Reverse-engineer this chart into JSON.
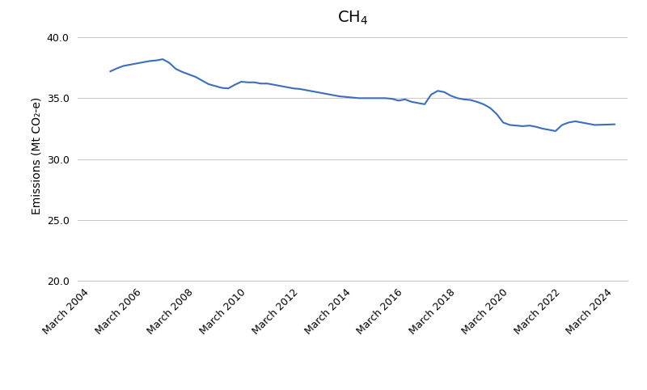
{
  "title": "CH$_4$",
  "ylabel": "Emissions (Mt CO₂-e)",
  "line_color": "#3c6dbf",
  "background_color": "#ffffff",
  "grid_color": "#c8c8c8",
  "ylim": [
    20.0,
    40.5
  ],
  "yticks": [
    20.0,
    25.0,
    30.0,
    35.0,
    40.0
  ],
  "x_tick_labels": [
    "March 2004",
    "March 2006",
    "March 2008",
    "March 2010",
    "March 2012",
    "March 2014",
    "March 2016",
    "March 2018",
    "March 2020",
    "March 2022",
    "March 2024"
  ],
  "x_tick_years": [
    2004,
    2006,
    2008,
    2010,
    2012,
    2014,
    2016,
    2018,
    2020,
    2022,
    2024
  ],
  "xlim": [
    2003.5,
    2024.5
  ],
  "data": {
    "years": [
      2004.75,
      2005.0,
      2005.25,
      2005.5,
      2005.75,
      2006.0,
      2006.25,
      2006.5,
      2006.75,
      2007.0,
      2007.25,
      2007.5,
      2007.75,
      2008.0,
      2008.25,
      2008.5,
      2008.75,
      2009.0,
      2009.25,
      2009.5,
      2009.75,
      2010.0,
      2010.25,
      2010.5,
      2010.75,
      2011.0,
      2011.25,
      2011.5,
      2011.75,
      2012.0,
      2012.25,
      2012.5,
      2012.75,
      2013.0,
      2013.25,
      2013.5,
      2013.75,
      2014.0,
      2014.25,
      2014.5,
      2014.75,
      2015.0,
      2015.25,
      2015.5,
      2015.75,
      2016.0,
      2016.25,
      2016.5,
      2016.75,
      2017.0,
      2017.25,
      2017.5,
      2017.75,
      2018.0,
      2018.25,
      2018.5,
      2018.75,
      2019.0,
      2019.25,
      2019.5,
      2019.75,
      2020.0,
      2020.25,
      2020.5,
      2020.75,
      2021.0,
      2021.25,
      2021.5,
      2021.75,
      2022.0,
      2022.25,
      2022.5,
      2022.75,
      2023.0,
      2023.25,
      2024.0
    ],
    "values": [
      37.2,
      37.45,
      37.65,
      37.75,
      37.85,
      37.95,
      38.05,
      38.1,
      38.2,
      37.9,
      37.4,
      37.15,
      36.95,
      36.75,
      36.45,
      36.15,
      36.0,
      35.85,
      35.8,
      36.1,
      36.35,
      36.3,
      36.3,
      36.2,
      36.2,
      36.1,
      36.0,
      35.9,
      35.8,
      35.75,
      35.65,
      35.55,
      35.45,
      35.35,
      35.25,
      35.15,
      35.1,
      35.05,
      35.0,
      35.0,
      35.0,
      35.0,
      35.0,
      34.95,
      34.8,
      34.9,
      34.7,
      34.6,
      34.5,
      35.3,
      35.6,
      35.5,
      35.2,
      35.0,
      34.9,
      34.85,
      34.7,
      34.5,
      34.2,
      33.7,
      33.0,
      32.8,
      32.75,
      32.7,
      32.75,
      32.65,
      32.5,
      32.4,
      32.3,
      32.8,
      33.0,
      33.1,
      33.0,
      32.9,
      32.8,
      32.85
    ]
  }
}
